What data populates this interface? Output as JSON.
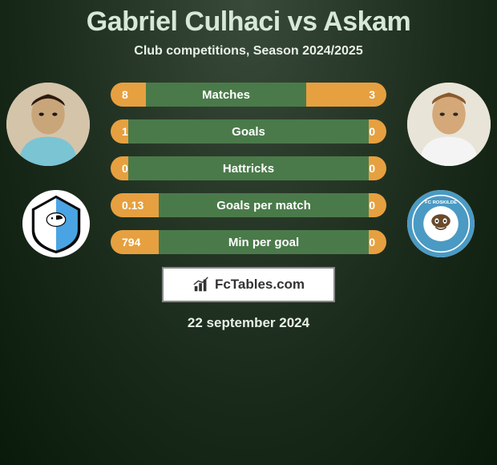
{
  "header": {
    "player1": "Gabriel Culhaci",
    "vs": "vs",
    "player2": "Askam",
    "subtitle": "Club competitions, Season 2024/2025"
  },
  "stats": [
    {
      "label": "Matches",
      "left_val": "8",
      "right_val": "3",
      "left_w": 44,
      "right_w": 100
    },
    {
      "label": "Goals",
      "left_val": "1",
      "right_val": "0",
      "left_w": 22,
      "right_w": 22
    },
    {
      "label": "Hattricks",
      "left_val": "0",
      "right_val": "0",
      "left_w": 22,
      "right_w": 22
    },
    {
      "label": "Goals per match",
      "left_val": "0.13",
      "right_val": "0",
      "left_w": 60,
      "right_w": 22
    },
    {
      "label": "Min per goal",
      "left_val": "794",
      "right_val": "0",
      "left_w": 60,
      "right_w": 22
    }
  ],
  "colors": {
    "bar_accent": "#e6a040",
    "bar_mid": "#4a7a4a",
    "bg_outer": "#0a1a0a",
    "bg_inner": "#3a4a3a",
    "text": "#ffffff"
  },
  "logo": {
    "text": "FcTables.com"
  },
  "date": "22 september 2024",
  "player1": {
    "name": "Gabriel Culhaci",
    "club": "HB Køge"
  },
  "player2": {
    "name": "Askam",
    "club": "FC Roskilde"
  }
}
